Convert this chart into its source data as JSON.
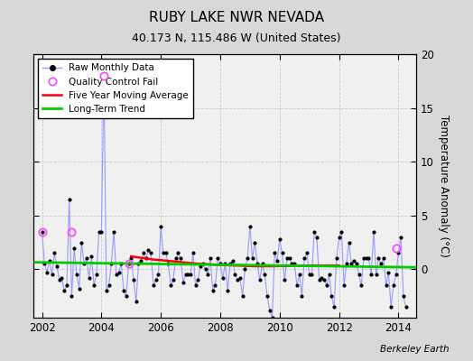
{
  "title": "RUBY LAKE NWR NEVADA",
  "subtitle": "40.173 N, 115.486 W (United States)",
  "ylabel": "Temperature Anomaly (°C)",
  "credit": "Berkeley Earth",
  "xlim": [
    2001.7,
    2014.6
  ],
  "ylim": [
    -4.5,
    20.0
  ],
  "fig_bg_color": "#d8d8d8",
  "plot_bg_color": "#f0f0f0",
  "raw_color": "#9999ff",
  "dot_color": "#000000",
  "ma_color": "#ff0000",
  "trend_color": "#00cc00",
  "qc_color": "#ff44ff",
  "raw_data_x": [
    2002.0,
    2002.083,
    2002.167,
    2002.25,
    2002.333,
    2002.417,
    2002.5,
    2002.583,
    2002.667,
    2002.75,
    2002.833,
    2002.917,
    2003.0,
    2003.083,
    2003.167,
    2003.25,
    2003.333,
    2003.417,
    2003.5,
    2003.583,
    2003.667,
    2003.75,
    2003.833,
    2003.917,
    2004.0,
    2004.083,
    2004.167,
    2004.25,
    2004.333,
    2004.417,
    2004.5,
    2004.583,
    2004.667,
    2004.75,
    2004.833,
    2004.917,
    2005.0,
    2005.083,
    2005.167,
    2005.25,
    2005.333,
    2005.417,
    2005.5,
    2005.583,
    2005.667,
    2005.75,
    2005.833,
    2005.917,
    2006.0,
    2006.083,
    2006.167,
    2006.25,
    2006.333,
    2006.417,
    2006.5,
    2006.583,
    2006.667,
    2006.75,
    2006.833,
    2006.917,
    2007.0,
    2007.083,
    2007.167,
    2007.25,
    2007.333,
    2007.417,
    2007.5,
    2007.583,
    2007.667,
    2007.75,
    2007.833,
    2007.917,
    2008.0,
    2008.083,
    2008.167,
    2008.25,
    2008.333,
    2008.417,
    2008.5,
    2008.583,
    2008.667,
    2008.75,
    2008.833,
    2008.917,
    2009.0,
    2009.083,
    2009.167,
    2009.25,
    2009.333,
    2009.417,
    2009.5,
    2009.583,
    2009.667,
    2009.75,
    2009.833,
    2009.917,
    2010.0,
    2010.083,
    2010.167,
    2010.25,
    2010.333,
    2010.417,
    2010.5,
    2010.583,
    2010.667,
    2010.75,
    2010.833,
    2010.917,
    2011.0,
    2011.083,
    2011.167,
    2011.25,
    2011.333,
    2011.417,
    2011.5,
    2011.583,
    2011.667,
    2011.75,
    2011.833,
    2011.917,
    2012.0,
    2012.083,
    2012.167,
    2012.25,
    2012.333,
    2012.417,
    2012.5,
    2012.583,
    2012.667,
    2012.75,
    2012.833,
    2012.917,
    2013.0,
    2013.083,
    2013.167,
    2013.25,
    2013.333,
    2013.417,
    2013.5,
    2013.583,
    2013.667,
    2013.75,
    2013.833,
    2013.917,
    2014.0,
    2014.083,
    2014.167,
    2014.25
  ],
  "raw_data_y": [
    3.5,
    0.5,
    -0.3,
    0.8,
    -0.5,
    1.5,
    0.3,
    -1.0,
    -0.8,
    -2.0,
    -1.5,
    6.5,
    -2.5,
    2.0,
    -0.5,
    -1.8,
    2.5,
    0.5,
    1.0,
    -0.8,
    1.2,
    -1.5,
    -0.5,
    3.5,
    3.5,
    18.0,
    -2.0,
    -1.5,
    0.5,
    3.5,
    -0.5,
    -0.3,
    0.5,
    -2.0,
    -2.5,
    0.5,
    1.0,
    -1.0,
    -3.0,
    0.5,
    0.8,
    1.5,
    1.0,
    1.8,
    1.5,
    -1.5,
    -1.0,
    -0.5,
    4.0,
    1.5,
    1.5,
    0.5,
    -1.5,
    -1.0,
    1.0,
    1.5,
    1.0,
    -1.2,
    -0.5,
    -0.5,
    -0.5,
    1.5,
    -1.5,
    -1.0,
    0.3,
    0.5,
    0.0,
    -0.5,
    1.0,
    -2.0,
    -1.5,
    1.0,
    0.5,
    -0.8,
    0.5,
    -2.0,
    0.5,
    0.8,
    -0.5,
    -1.0,
    -0.8,
    -2.5,
    0.0,
    1.0,
    4.0,
    1.0,
    2.5,
    0.5,
    -1.0,
    0.5,
    -0.5,
    -2.5,
    -3.8,
    -4.5,
    1.5,
    0.8,
    2.8,
    1.5,
    -1.0,
    1.0,
    1.0,
    0.5,
    0.5,
    -1.5,
    -0.5,
    -2.5,
    1.0,
    1.5,
    -0.5,
    -0.5,
    3.5,
    3.0,
    -1.0,
    -0.8,
    -1.0,
    -1.5,
    -0.5,
    -2.5,
    -3.5,
    1.0,
    3.0,
    3.5,
    -1.5,
    0.5,
    2.5,
    0.5,
    0.8,
    0.5,
    -0.5,
    -1.5,
    1.0,
    1.0,
    1.0,
    -0.5,
    3.5,
    -0.5,
    1.0,
    0.5,
    1.0,
    -1.5,
    -0.3,
    -3.5,
    -1.5,
    -0.5,
    1.5,
    3.0,
    -2.5,
    -3.5
  ],
  "qc_fail_x": [
    2002.0,
    2003.0,
    2004.083,
    2004.917,
    2013.917
  ],
  "qc_fail_y": [
    3.5,
    3.5,
    18.0,
    0.5,
    2.0
  ],
  "five_yr_ma_x": [
    2005.0,
    2005.25,
    2005.5,
    2005.75,
    2006.0,
    2006.25,
    2006.5,
    2006.75,
    2007.0,
    2007.25,
    2007.5,
    2007.75,
    2008.0,
    2008.25,
    2008.5,
    2008.75,
    2009.0,
    2009.25,
    2009.5,
    2009.75,
    2010.0,
    2010.25,
    2010.5,
    2010.75,
    2011.0,
    2011.25,
    2011.5,
    2011.75,
    2012.0
  ],
  "five_yr_ma_y": [
    1.2,
    1.1,
    1.0,
    0.9,
    0.85,
    0.78,
    0.72,
    0.65,
    0.58,
    0.52,
    0.48,
    0.44,
    0.4,
    0.38,
    0.35,
    0.33,
    0.3,
    0.28,
    0.28,
    0.28,
    0.3,
    0.3,
    0.32,
    0.33,
    0.35,
    0.35,
    0.35,
    0.35,
    0.35
  ],
  "trend_x": [
    2001.7,
    2014.6
  ],
  "trend_y": [
    0.65,
    0.18
  ],
  "yticks_right": [
    0,
    5,
    10,
    15,
    20
  ],
  "ytick_labels_right": [
    "0",
    "5",
    "10",
    "15",
    "20"
  ],
  "xticks": [
    2002,
    2004,
    2006,
    2008,
    2010,
    2012,
    2014
  ],
  "grid_color": "#cccccc",
  "grid_style": "--"
}
